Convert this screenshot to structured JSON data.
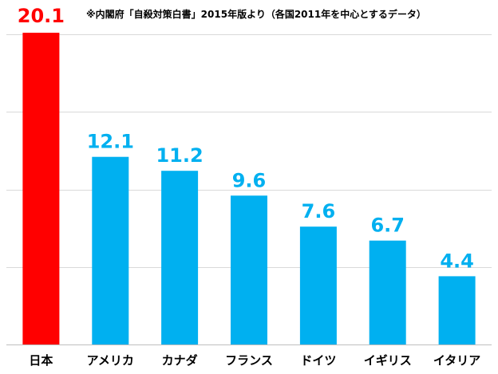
{
  "note": "※内閣府「自殺対策白書」2015年版より（各国2011年を中心とするデータ）",
  "colors": {
    "highlight": "#ff0000",
    "bar": "#00b0f0",
    "grid": "#d9d9d9",
    "axis": "#bfbfbf"
  },
  "chart_data": {
    "type": "bar",
    "categories": [
      "日本",
      "アメリカ",
      "カナダ",
      "フランス",
      "ドイツ",
      "イギリス",
      "イタリア"
    ],
    "values": [
      20.1,
      12.1,
      11.2,
      9.6,
      7.6,
      6.7,
      4.4
    ],
    "highlight_index": 0,
    "ylim": [
      0,
      20
    ],
    "y_gridlines": [
      5,
      10,
      15,
      20
    ],
    "grid": true,
    "show_y_ticks": false,
    "data_labels": true,
    "title": "",
    "xlabel": "",
    "ylabel": ""
  }
}
